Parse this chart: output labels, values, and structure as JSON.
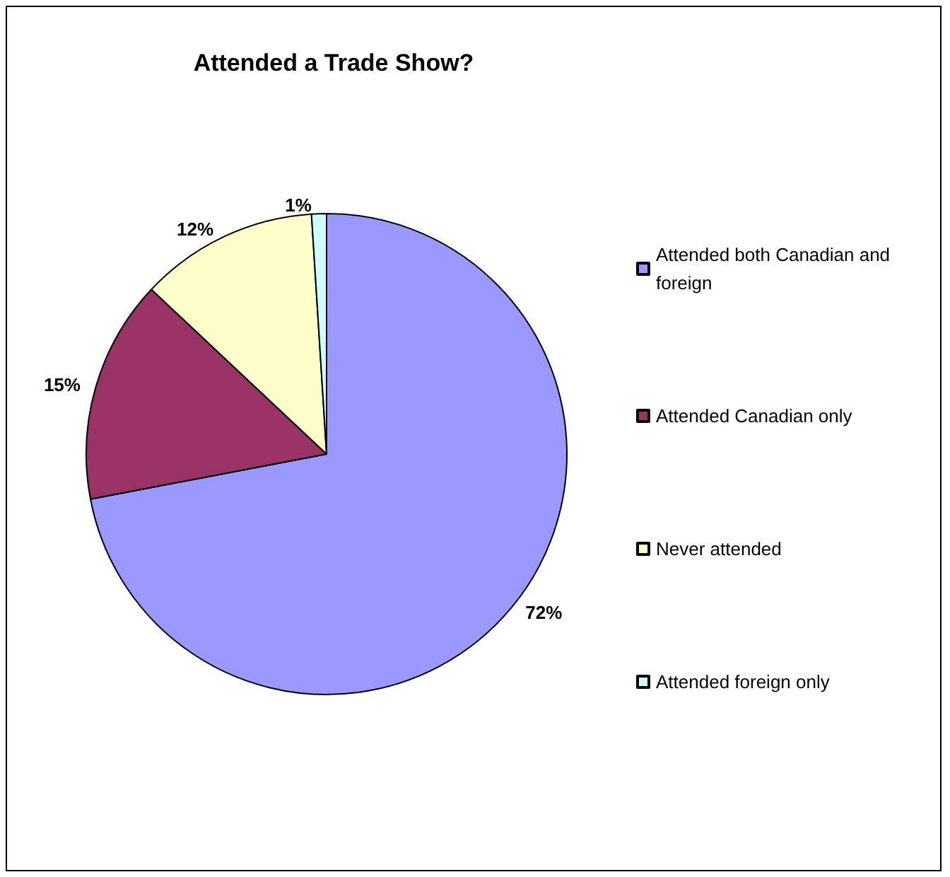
{
  "chart_data": {
    "type": "pie",
    "title": "Attended a Trade Show?",
    "categories": [
      "Attended both Canadian and foreign",
      "Attended Canadian only",
      "Never attended",
      "Attended foreign only"
    ],
    "values": [
      72,
      15,
      12,
      1
    ],
    "colors": [
      "#9999ff",
      "#993366",
      "#ffffcc",
      "#ccffff"
    ],
    "value_labels": [
      "72%",
      "15%",
      "12%",
      "1%"
    ],
    "legend": "right"
  }
}
